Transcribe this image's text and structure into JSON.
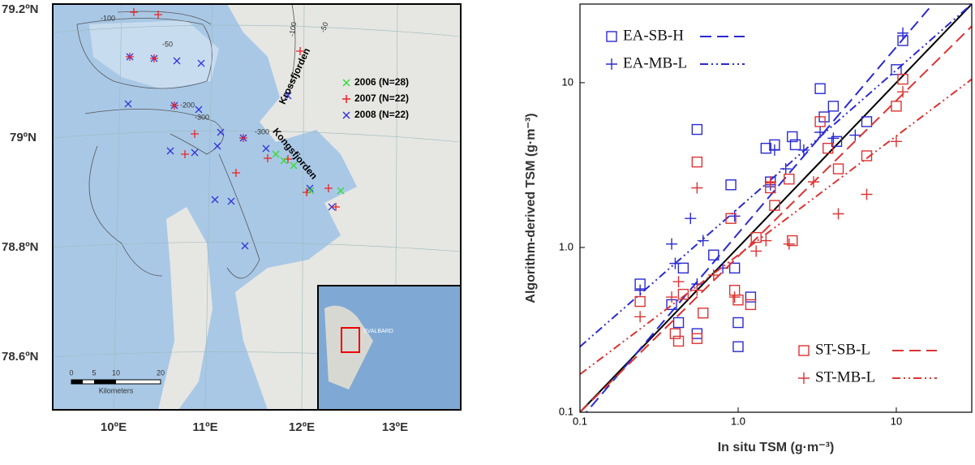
{
  "map": {
    "lat_labels": [
      "79.2ºN",
      "79ºN",
      "78.8ºN",
      "78.6ºN"
    ],
    "lon_labels": [
      "10ºE",
      "11ºE",
      "12ºE",
      "13ºE"
    ],
    "legend": [
      {
        "label": "2006 (N=28)",
        "color": "#33dd33"
      },
      {
        "label": "2007 (N=22)",
        "color": "#ee2222"
      },
      {
        "label": "2008 (N=22)",
        "color": "#3333dd"
      }
    ],
    "places": [
      "Krossfjorden",
      "Kongsfjorden"
    ],
    "contours": [
      "-100",
      "-50",
      "-200",
      "-300",
      "-300",
      "-100",
      "-50"
    ],
    "scale_bar": {
      "ticks": [
        "0",
        "5",
        "10",
        "20"
      ],
      "unit": "Kilometers"
    },
    "inset_label": "SVALBARD"
  },
  "chart_data": {
    "type": "scatter",
    "xlabel": "In situ TSM (g·m⁻³)",
    "ylabel": "Algorithm-derived TSM (g·m⁻³)",
    "log_x": true,
    "log_y": true,
    "xlim": [
      0.1,
      30
    ],
    "ylim": [
      0.1,
      30
    ],
    "xticks": [
      0.1,
      {
        "value": 1,
        "label": "1.0"
      },
      10
    ],
    "yticks": [
      0.1,
      {
        "value": 1,
        "label": "1.0"
      },
      10
    ],
    "reference_line": {
      "color": "#000000",
      "x": [
        0.1,
        30
      ],
      "values": [
        0.1,
        30
      ]
    },
    "series": [
      {
        "name": "EA-SB-H",
        "color": "#2a2ad0",
        "marker": "square",
        "linestyle": "dashed",
        "legend_corner": "upper left",
        "x": [
          0.24,
          0.38,
          0.42,
          0.45,
          0.55,
          0.55,
          0.7,
          0.9,
          0.95,
          1.0,
          1.0,
          1.2,
          1.5,
          1.6,
          1.7,
          2.2,
          2.3,
          3.3,
          3.5,
          4,
          4.2,
          6.5,
          10,
          11
        ],
        "values": [
          0.6,
          0.45,
          0.35,
          0.75,
          5.2,
          0.3,
          0.9,
          2.4,
          0.75,
          0.35,
          0.25,
          0.5,
          4.0,
          2.5,
          4.2,
          4.7,
          4.2,
          9.2,
          6.2,
          7.2,
          4.4,
          5.8,
          12,
          18
        ],
        "fit_x": [
          0.1,
          17
        ],
        "fit_y": [
          0.09,
          30
        ]
      },
      {
        "name": "EA-MB-L",
        "color": "#2a2ad0",
        "marker": "plus",
        "linestyle": "dashdotdot",
        "legend_corner": "upper left",
        "x": [
          0.24,
          0.38,
          0.4,
          0.5,
          0.55,
          0.6,
          0.8,
          0.95,
          1.6,
          1.7,
          2.0,
          2.6,
          3.3,
          4.0,
          5.5,
          11
        ],
        "values": [
          0.55,
          1.05,
          0.8,
          1.5,
          0.6,
          1.1,
          0.75,
          1.55,
          2.4,
          3.9,
          3.0,
          3.9,
          5.0,
          4.6,
          4.8,
          20
        ],
        "fit_x": [
          0.1,
          30
        ],
        "fit_y": [
          0.25,
          30
        ]
      },
      {
        "name": "ST-SB-L",
        "color": "#dd3333",
        "marker": "square",
        "linestyle": "dashed",
        "legend_corner": "lower right",
        "x": [
          0.24,
          0.4,
          0.42,
          0.45,
          0.55,
          0.55,
          0.6,
          0.9,
          0.95,
          1.0,
          1.2,
          1.3,
          1.6,
          1.7,
          2.2,
          2.1,
          3.3,
          3.7,
          4.3,
          6.5,
          10,
          11
        ],
        "values": [
          0.47,
          0.3,
          0.27,
          0.52,
          3.3,
          0.28,
          0.4,
          1.5,
          0.55,
          0.48,
          0.45,
          1.15,
          2.3,
          1.8,
          1.1,
          2.6,
          5.8,
          4.0,
          3.0,
          3.6,
          7.2,
          10.5
        ],
        "fit_x": [
          0.1,
          30
        ],
        "fit_y": [
          0.1,
          22
        ]
      },
      {
        "name": "ST-MB-L",
        "color": "#dd3333",
        "marker": "plus",
        "linestyle": "dashdotdot",
        "legend_corner": "lower right",
        "x": [
          0.24,
          0.38,
          0.42,
          0.55,
          0.55,
          0.7,
          0.95,
          1.3,
          1.5,
          1.6,
          2.1,
          3.0,
          4.3,
          6.5,
          10,
          11
        ],
        "values": [
          0.38,
          0.5,
          0.62,
          2.3,
          0.55,
          0.68,
          0.5,
          0.95,
          1.1,
          2.5,
          1.05,
          2.5,
          1.6,
          2.1,
          4.4,
          8.8
        ],
        "fit_x": [
          0.1,
          30
        ],
        "fit_y": [
          0.17,
          10.5
        ]
      }
    ]
  }
}
